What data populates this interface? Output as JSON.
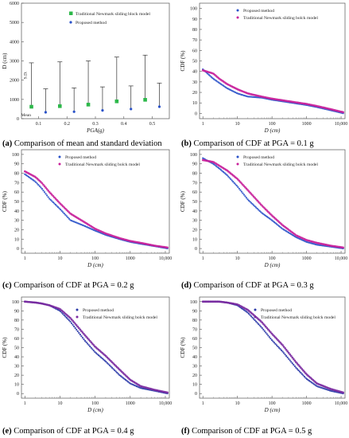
{
  "chart_data": [
    {
      "type": "scatter",
      "panel": "a",
      "caption_label": "(a)",
      "caption_text": "Comparison of mean and standard deviation",
      "xlabel": "PGA(g)",
      "ylabel": "D (cm)",
      "xticks": [
        "0.1",
        "0.2",
        "0.3",
        "0.4",
        "0.5"
      ],
      "xticks_pos": [
        0.1,
        0.2,
        0.3,
        0.4,
        0.5
      ],
      "xlim": [
        0.04,
        0.56
      ],
      "ylim": [
        0,
        6000
      ],
      "yticks": [
        0,
        1000,
        2000,
        3000,
        4000,
        5000,
        6000
      ],
      "annotations": {
        "sd": "S.D.",
        "mean": "Mean"
      },
      "legend": {
        "placement": "top-center",
        "entries": [
          "Traditional Newmark sliding block model",
          "Proposed method"
        ]
      },
      "series": [
        {
          "name": "Traditional Newmark sliding block model",
          "color": "#2db84a",
          "marker": "square",
          "x": [
            0.075,
            0.175,
            0.275,
            0.375,
            0.475
          ],
          "mean": [
            620,
            650,
            730,
            900,
            980
          ],
          "upper": [
            2900,
            2950,
            3000,
            3200,
            3300
          ]
        },
        {
          "name": "Proposed method",
          "color": "#2a52c9",
          "marker": "circle",
          "x": [
            0.125,
            0.225,
            0.325,
            0.425,
            0.525
          ],
          "mean": [
            330,
            360,
            430,
            500,
            620
          ],
          "upper": [
            1550,
            1600,
            1650,
            1700,
            1850
          ]
        }
      ]
    },
    {
      "type": "scatter",
      "panel": "b",
      "caption_label": "(b)",
      "caption_text": "Comparison of CDF at PGA = 0.1 g",
      "xlabel": "D (cm)",
      "ylabel": "CDF (%)",
      "xscale": "log",
      "xlim": [
        0.8,
        13000
      ],
      "ylim": [
        -5,
        105
      ],
      "xticks": [
        "1",
        "10",
        "100",
        "1000",
        "10,000"
      ],
      "xticks_pos": [
        1,
        10,
        100,
        1000,
        10000
      ],
      "yticks": [
        0,
        10,
        20,
        30,
        40,
        50,
        60,
        70,
        80,
        90,
        100
      ],
      "legend": {
        "placement": "top-center"
      },
      "series": [
        {
          "name": "Proposed method",
          "color": "#2a52c9",
          "x": [
            1,
            2,
            3,
            5,
            10,
            20,
            50,
            100,
            200,
            500,
            1000,
            2000,
            5000,
            12000
          ],
          "y": [
            42,
            33,
            29,
            24,
            19,
            16,
            15,
            13,
            11.5,
            9.5,
            8,
            6,
            3,
            0
          ]
        },
        {
          "name": "Traditional Newmark sliding bolck model",
          "color": "#c8209a",
          "x": [
            1,
            2,
            3,
            5,
            10,
            20,
            50,
            100,
            200,
            500,
            1000,
            2000,
            5000,
            12000
          ],
          "y": [
            41,
            38,
            33,
            28,
            23,
            19,
            16,
            14,
            12.5,
            10.5,
            9,
            7,
            4,
            1
          ]
        }
      ]
    },
    {
      "type": "scatter",
      "panel": "c",
      "caption_label": "(c)",
      "caption_text": "Comparison of CDF at PGA = 0.2 g",
      "xlabel": "D (cm)",
      "ylabel": "CDF (%)",
      "xscale": "log",
      "xlim": [
        0.8,
        13000
      ],
      "ylim": [
        -5,
        105
      ],
      "xticks": [
        "1",
        "10",
        "100",
        "1000",
        "10,000"
      ],
      "xticks_pos": [
        1,
        10,
        100,
        1000,
        10000
      ],
      "yticks": [
        0,
        10,
        20,
        30,
        40,
        50,
        60,
        70,
        80,
        90,
        100
      ],
      "legend": {
        "placement": "top-center"
      },
      "series": [
        {
          "name": "Proposed method",
          "color": "#2a52c9",
          "x": [
            1,
            2,
            3,
            5,
            10,
            20,
            50,
            100,
            200,
            500,
            1000,
            2000,
            5000,
            12000
          ],
          "y": [
            79,
            71,
            64,
            53,
            42,
            30,
            24,
            19,
            14.5,
            10,
            7,
            5,
            2.5,
            0
          ]
        },
        {
          "name": "Traditional Newmark sliding bolck model",
          "color": "#c8209a",
          "x": [
            1,
            2,
            3,
            5,
            10,
            20,
            50,
            100,
            200,
            500,
            1000,
            2000,
            5000,
            12000
          ],
          "y": [
            82,
            76,
            70,
            60,
            48,
            37,
            28,
            21,
            16,
            11,
            8,
            6,
            3,
            1
          ]
        }
      ]
    },
    {
      "type": "scatter",
      "panel": "d",
      "caption_label": "(d)",
      "caption_text": "Comparison of CDF at PGA = 0.3 g",
      "xlabel": "D (cm)",
      "ylabel": "CDF (%)",
      "xscale": "log",
      "xlim": [
        0.8,
        13000
      ],
      "ylim": [
        -5,
        105
      ],
      "xticks": [
        "1",
        "10",
        "100",
        "1000",
        "10,000"
      ],
      "xticks_pos": [
        1,
        10,
        100,
        1000,
        10000
      ],
      "yticks": [
        0,
        10,
        20,
        30,
        40,
        50,
        60,
        70,
        80,
        90,
        100
      ],
      "legend": {
        "placement": "top-center"
      },
      "series": [
        {
          "name": "Proposed method",
          "color": "#2a52c9",
          "x": [
            1,
            2,
            3,
            5,
            10,
            20,
            50,
            100,
            200,
            500,
            1000,
            2000,
            5000,
            12000
          ],
          "y": [
            96,
            90,
            85,
            78,
            66,
            52,
            38,
            30,
            21,
            12,
            7,
            4,
            2,
            0
          ]
        },
        {
          "name": "Traditional Newmark sliding bolck model",
          "color": "#c8209a",
          "x": [
            1,
            2,
            3,
            5,
            10,
            20,
            50,
            100,
            200,
            500,
            1000,
            2000,
            5000,
            12000
          ],
          "y": [
            94,
            92,
            88,
            83,
            74,
            62,
            46,
            35,
            25,
            14,
            9,
            6,
            3,
            1
          ]
        }
      ]
    },
    {
      "type": "scatter",
      "panel": "e",
      "caption_label": "(e)",
      "caption_text": "Comparison of CDF at PGA = 0.4 g",
      "xlabel": "D (cm)",
      "ylabel": "CDF (%)",
      "xscale": "log",
      "xlim": [
        0.8,
        13000
      ],
      "ylim": [
        -5,
        105
      ],
      "xticks": [
        "1",
        "10",
        "100",
        "1000",
        "10,000"
      ],
      "xticks_pos": [
        1,
        10,
        100,
        1000,
        10000
      ],
      "yticks": [
        0,
        10,
        20,
        30,
        40,
        50,
        60,
        70,
        80,
        90,
        100
      ],
      "legend": {
        "placement": "top-right"
      },
      "series": [
        {
          "name": "Proposed method",
          "color": "#2a3aa8",
          "x": [
            1,
            2,
            3,
            5,
            10,
            20,
            50,
            100,
            200,
            500,
            1000,
            2000,
            5000,
            12000
          ],
          "y": [
            100,
            99,
            98,
            96,
            90,
            78,
            58,
            45,
            35,
            20,
            11,
            6,
            3,
            0
          ]
        },
        {
          "name": "Traditional Newmark sliding bolck model",
          "color": "#7a2aa0",
          "x": [
            1,
            2,
            3,
            5,
            10,
            20,
            50,
            100,
            200,
            500,
            1000,
            2000,
            5000,
            12000
          ],
          "y": [
            100,
            99,
            98,
            96,
            92,
            82,
            64,
            51,
            41,
            26,
            15,
            8,
            4,
            1
          ]
        }
      ]
    },
    {
      "type": "scatter",
      "panel": "f",
      "caption_label": "(f)",
      "caption_text": "Comparison of CDF at PGA = 0.5 g",
      "xlabel": "D (cm)",
      "ylabel": "CDF (%)",
      "xscale": "log",
      "xlim": [
        0.8,
        13000
      ],
      "ylim": [
        -5,
        105
      ],
      "xticks": [
        "1",
        "10",
        "100",
        "1000",
        "10,000"
      ],
      "xticks_pos": [
        1,
        10,
        100,
        1000,
        10000
      ],
      "yticks": [
        0,
        10,
        20,
        30,
        40,
        50,
        60,
        70,
        80,
        90,
        100
      ],
      "legend": {
        "placement": "top-right"
      },
      "series": [
        {
          "name": "Proposed method",
          "color": "#2a3aa8",
          "x": [
            1,
            2,
            3,
            5,
            10,
            20,
            50,
            100,
            200,
            500,
            1000,
            2000,
            5000,
            12000
          ],
          "y": [
            100,
            100,
            100,
            99,
            96,
            88,
            72,
            58,
            46,
            28,
            16,
            8,
            3,
            0
          ]
        },
        {
          "name": "Traditional Newmark sliding bolck model",
          "color": "#7a2aa0",
          "x": [
            1,
            2,
            3,
            5,
            10,
            20,
            50,
            100,
            200,
            500,
            1000,
            2000,
            5000,
            12000
          ],
          "y": [
            100,
            100,
            100,
            99,
            97,
            91,
            78,
            65,
            53,
            34,
            21,
            11,
            5,
            1
          ]
        }
      ]
    }
  ]
}
